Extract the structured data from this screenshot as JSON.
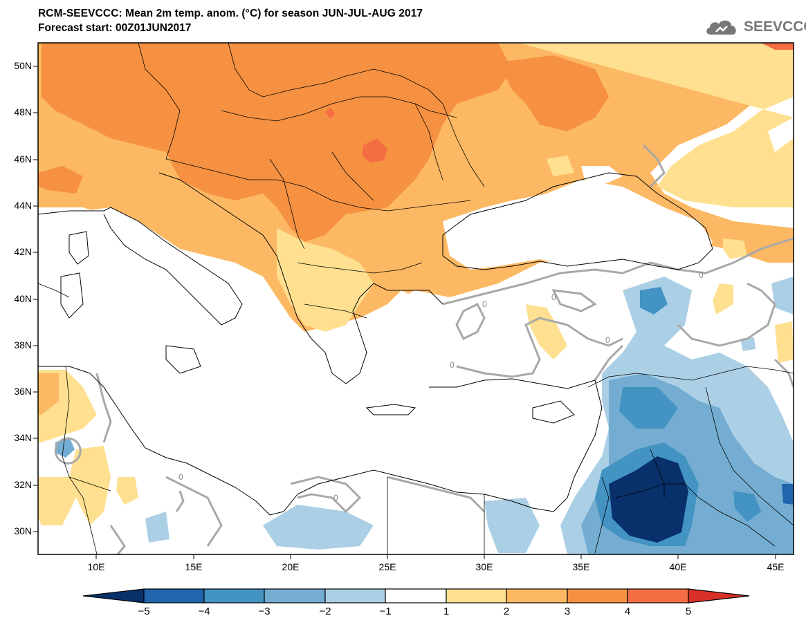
{
  "header": {
    "title": "RCM-SEEVCCC: Mean 2m temp. anom. (°C) for season JUN-JUL-AUG 2017",
    "subtitle": "Forecast start: 00Z01JUN2017",
    "logo_text": "SEEVCCC"
  },
  "map": {
    "lat_labels": [
      "50N",
      "48N",
      "46N",
      "44N",
      "42N",
      "40N",
      "38N",
      "36N",
      "34N",
      "32N",
      "30N"
    ],
    "lon_labels": [
      "10E",
      "15E",
      "20E",
      "25E",
      "30E",
      "35E",
      "40E",
      "45E"
    ],
    "contour_label": "0"
  },
  "colorbar": {
    "labels": [
      "−5",
      "−4",
      "−3",
      "−2",
      "−1",
      "1",
      "2",
      "3",
      "4",
      "5"
    ],
    "colors": [
      "#08306b",
      "#2166ac",
      "#4393c3",
      "#74add1",
      "#abd0e6",
      "#ffffff",
      "#fee090",
      "#fdb863",
      "#f59140",
      "#f46d43",
      "#d73027"
    ]
  }
}
